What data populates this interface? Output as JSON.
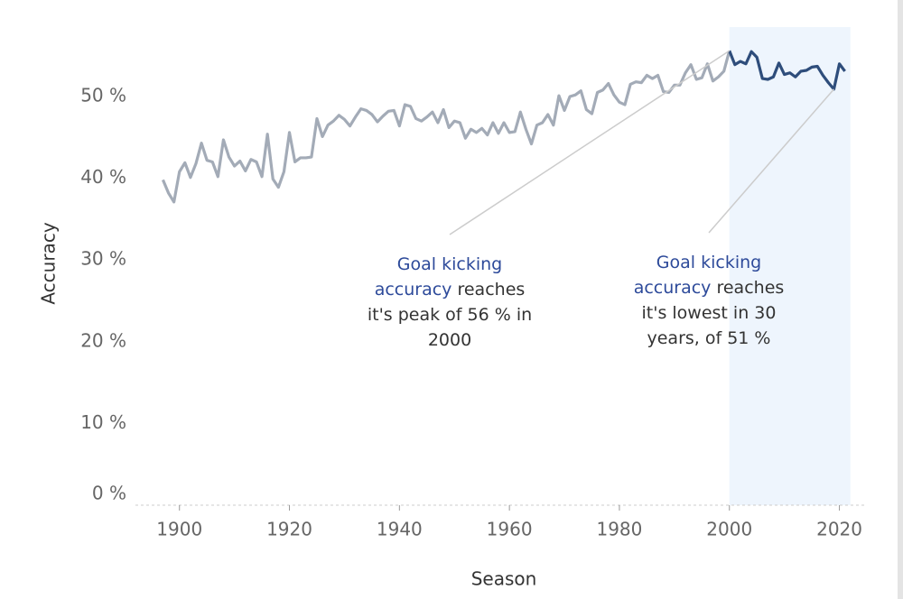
{
  "chart_data": {
    "type": "line",
    "xlabel": "Season",
    "ylabel": "Accuracy",
    "xlim": [
      1892,
      2025
    ],
    "ylim": [
      0,
      58.5
    ],
    "xticks": [
      1900,
      1920,
      1940,
      1960,
      1980,
      2000,
      2020
    ],
    "yticks": [
      {
        "value": 0,
        "label": "0 %"
      },
      {
        "value": 10,
        "label": "10 %"
      },
      {
        "value": 20,
        "label": "20 %"
      },
      {
        "value": 30,
        "label": "30 %"
      },
      {
        "value": 40,
        "label": "40 %"
      },
      {
        "value": 50,
        "label": "50 %"
      }
    ],
    "highlight": {
      "range": [
        2000,
        2022
      ],
      "color": "#eef5fd"
    },
    "series": [
      {
        "color": "#a3abb7",
        "x": [
          1897,
          1898,
          1899,
          1900,
          1901,
          1902,
          1903,
          1904,
          1905,
          1906,
          1907,
          1908,
          1909,
          1910,
          1911,
          1912,
          1913,
          1914,
          1915,
          1916,
          1917,
          1918,
          1919,
          1920,
          1921,
          1922,
          1923,
          1924,
          1925,
          1926,
          1927,
          1928,
          1929,
          1930,
          1931,
          1932,
          1933,
          1934,
          1935,
          1936,
          1937,
          1938,
          1939,
          1940,
          1941,
          1942,
          1943,
          1944,
          1945,
          1946,
          1947,
          1948,
          1949,
          1950,
          1951,
          1952,
          1953,
          1954,
          1955,
          1956,
          1957,
          1958,
          1959,
          1960,
          1961,
          1962,
          1963,
          1964,
          1965,
          1966,
          1967,
          1968,
          1969,
          1970,
          1971,
          1972,
          1973,
          1974,
          1975,
          1976,
          1977,
          1978,
          1979,
          1980,
          1981,
          1982,
          1983,
          1984,
          1985,
          1986,
          1987,
          1988,
          1989,
          1990,
          1991,
          1992,
          1993,
          1994,
          1995,
          1996,
          1997,
          1998,
          1999,
          2000
        ],
        "values": [
          39.8,
          38.2,
          37.1,
          40.8,
          41.9,
          40.1,
          41.8,
          44.3,
          42.2,
          42.0,
          40.2,
          44.7,
          42.6,
          41.5,
          42.1,
          40.9,
          42.3,
          42.0,
          40.2,
          45.4,
          39.9,
          38.9,
          40.8,
          45.6,
          42.0,
          42.5,
          42.5,
          42.6,
          47.3,
          45.1,
          46.5,
          47.0,
          47.7,
          47.2,
          46.4,
          47.5,
          48.5,
          48.3,
          47.8,
          46.9,
          47.6,
          48.2,
          48.3,
          46.4,
          49.0,
          48.8,
          47.3,
          47.0,
          47.5,
          48.1,
          46.8,
          48.4,
          46.2,
          47.0,
          46.8,
          44.9,
          46.0,
          45.6,
          46.1,
          45.3,
          46.8,
          45.5,
          46.8,
          45.6,
          45.7,
          48.1,
          46.0,
          44.2,
          46.5,
          46.8,
          47.8,
          46.5,
          50.1,
          48.3,
          50.0,
          50.2,
          50.7,
          48.4,
          47.9,
          50.5,
          50.8,
          51.6,
          50.2,
          49.3,
          49.0,
          51.5,
          51.8,
          51.7,
          52.6,
          52.2,
          52.6,
          50.6,
          50.5,
          51.4,
          51.4,
          52.9,
          53.9,
          52.1,
          52.3,
          54.0,
          51.9,
          52.4,
          53.1,
          55.6
        ]
      },
      {
        "color": "#2e4d7b",
        "x": [
          2000,
          2001,
          2002,
          2003,
          2004,
          2005,
          2006,
          2007,
          2008,
          2009,
          2010,
          2011,
          2012,
          2013,
          2014,
          2015,
          2016,
          2017,
          2018,
          2019,
          2020,
          2021
        ],
        "values": [
          55.6,
          53.9,
          54.3,
          54.0,
          55.5,
          54.8,
          52.2,
          52.1,
          52.4,
          54.1,
          52.7,
          52.9,
          52.4,
          53.1,
          53.2,
          53.6,
          53.7,
          52.6,
          51.7,
          50.9,
          54.0,
          53.1
        ]
      }
    ],
    "annotations": [
      {
        "lines": [
          [
            {
              "text": "Goal kicking",
              "hl": true
            }
          ],
          [
            {
              "text": "accuracy",
              "hl": true
            },
            {
              "text": " reaches",
              "hl": false
            }
          ],
          [
            {
              "text": "it's peak of 56 % in",
              "hl": false
            }
          ],
          [
            {
              "text": "2000",
              "hl": false
            }
          ]
        ]
      },
      {
        "lines": [
          [
            {
              "text": "Goal kicking",
              "hl": true
            }
          ],
          [
            {
              "text": "accuracy",
              "hl": true
            },
            {
              "text": " reaches",
              "hl": false
            }
          ],
          [
            {
              "text": "it's lowest in 30",
              "hl": false
            }
          ],
          [
            {
              "text": "years, of 51 %",
              "hl": false
            }
          ]
        ]
      }
    ]
  }
}
